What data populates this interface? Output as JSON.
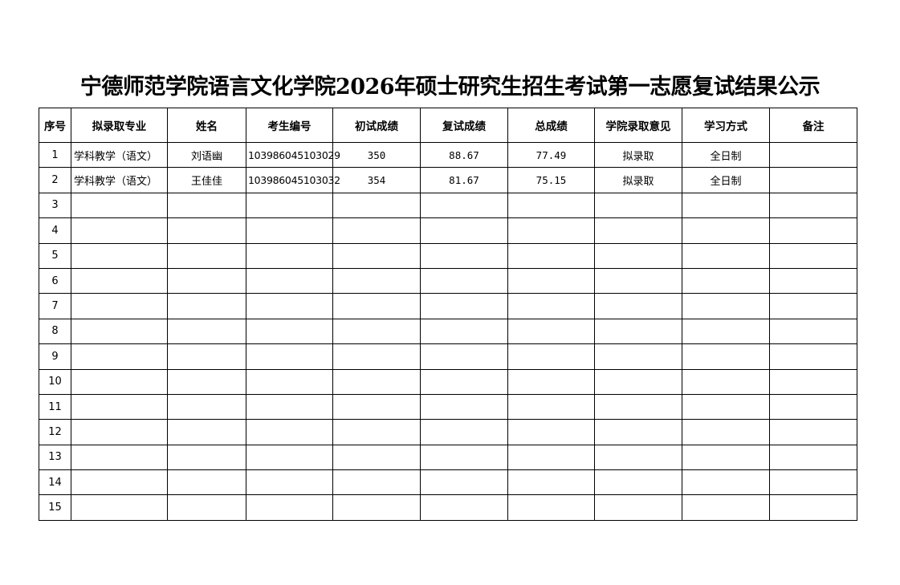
{
  "title": "宁德师范学院语言文化学院2026年硕士研究生招生考试第一志愿复试结果公示",
  "columns": [
    "序号",
    "拟录取专业",
    "姓名",
    "考生编号",
    "初试成绩",
    "复试成绩",
    "总成绩",
    "学院录取意见",
    "学习方式",
    "备注"
  ],
  "rows": [
    [
      "1",
      "学科教学（语文）",
      "刘语幽",
      "103986045103029",
      "350",
      "88.67",
      "77.49",
      "拟录取",
      "全日制",
      ""
    ],
    [
      "2",
      "学科教学（语文）",
      "王佳佳",
      "103986045103032",
      "354",
      "81.67",
      "75.15",
      "拟录取",
      "全日制",
      ""
    ],
    [
      "3",
      "",
      "",
      "",
      "",
      "",
      "",
      "",
      "",
      ""
    ],
    [
      "4",
      "",
      "",
      "",
      "",
      "",
      "",
      "",
      "",
      ""
    ],
    [
      "5",
      "",
      "",
      "",
      "",
      "",
      "",
      "",
      "",
      ""
    ],
    [
      "6",
      "",
      "",
      "",
      "",
      "",
      "",
      "",
      "",
      ""
    ],
    [
      "7",
      "",
      "",
      "",
      "",
      "",
      "",
      "",
      "",
      ""
    ],
    [
      "8",
      "",
      "",
      "",
      "",
      "",
      "",
      "",
      "",
      ""
    ],
    [
      "9",
      "",
      "",
      "",
      "",
      "",
      "",
      "",
      "",
      ""
    ],
    [
      "10",
      "",
      "",
      "",
      "",
      "",
      "",
      "",
      "",
      ""
    ],
    [
      "11",
      "",
      "",
      "",
      "",
      "",
      "",
      "",
      "",
      ""
    ],
    [
      "12",
      "",
      "",
      "",
      "",
      "",
      "",
      "",
      "",
      ""
    ],
    [
      "13",
      "",
      "",
      "",
      "",
      "",
      "",
      "",
      "",
      ""
    ],
    [
      "14",
      "",
      "",
      "",
      "",
      "",
      "",
      "",
      "",
      ""
    ],
    [
      "15",
      "",
      "",
      "",
      "",
      "",
      "",
      "",
      "",
      ""
    ]
  ]
}
